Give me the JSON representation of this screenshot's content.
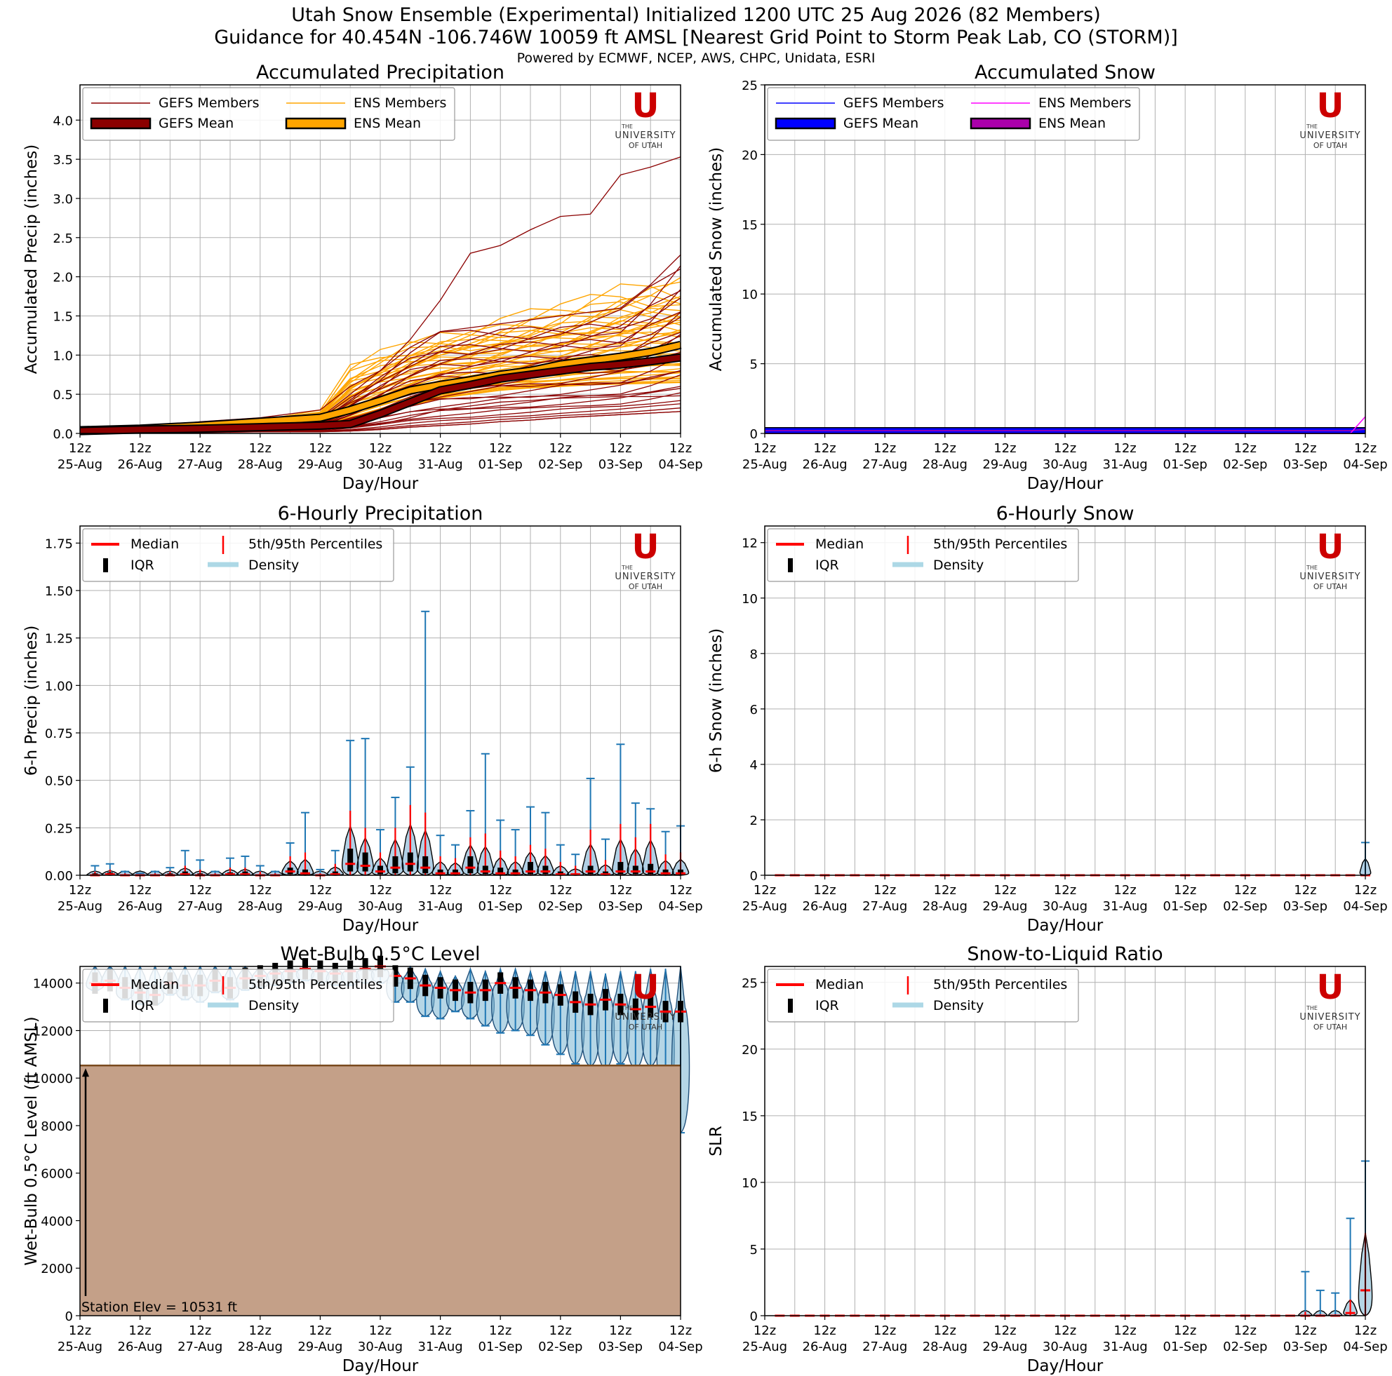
{
  "header": {
    "title_line1": "Utah Snow Ensemble (Experimental) Initialized 1200 UTC 25 Aug 2026 (82 Members)",
    "title_line2": "Guidance for 40.454N -106.746W 10059 ft AMSL [Nearest Grid Point to Storm Peak Lab, CO (STORM)]",
    "credit": "Powered by ECMWF, NCEP, AWS, CHPC, Unidata, ESRI"
  },
  "logo": {
    "letter": "U",
    "line1": "THE",
    "line2": "UNIVERSITY",
    "line3": "OF UTAH",
    "color": "#cc0000"
  },
  "common_x": {
    "label": "Day/Hour",
    "hour_label": "12z",
    "days": [
      "25-Aug",
      "26-Aug",
      "27-Aug",
      "28-Aug",
      "29-Aug",
      "30-Aug",
      "31-Aug",
      "01-Sep",
      "02-Sep",
      "03-Sep",
      "04-Sep"
    ]
  },
  "chart_data": [
    {
      "id": "acc_precip",
      "type": "line",
      "title": "Accumulated Precipitation",
      "xlabel": "Day/Hour",
      "ylabel": "Accumulated Precip (inches)",
      "ylim": [
        0,
        4.45
      ],
      "yticks": [
        "0.0",
        "0.5",
        "1.0",
        "1.5",
        "2.0",
        "2.5",
        "3.0",
        "3.5",
        "4.0"
      ],
      "legend": {
        "position": "top-left",
        "entries": [
          "GEFS Members",
          "ENS Members",
          "GEFS Mean",
          "ENS Mean"
        ]
      },
      "colors": {
        "gefs_member": "#8b0000",
        "ens_member": "#ffa500",
        "gefs_mean": "#8b0000",
        "ens_mean": "#ffa500"
      },
      "series": [
        {
          "name": "GEFS Mean",
          "x": [
            0,
            1,
            2,
            3,
            4,
            4.5,
            5,
            5.5,
            6,
            6.5,
            7,
            7.5,
            8,
            8.5,
            9,
            9.5,
            10
          ],
          "values": [
            0.03,
            0.05,
            0.06,
            0.08,
            0.1,
            0.12,
            0.25,
            0.4,
            0.55,
            0.62,
            0.7,
            0.75,
            0.8,
            0.85,
            0.88,
            0.92,
            0.97
          ]
        },
        {
          "name": "ENS Mean",
          "x": [
            0,
            1,
            2,
            3,
            4,
            4.5,
            5,
            5.5,
            6,
            6.5,
            7,
            7.5,
            8,
            8.5,
            9,
            9.5,
            10
          ],
          "values": [
            0.04,
            0.06,
            0.1,
            0.15,
            0.2,
            0.3,
            0.42,
            0.55,
            0.62,
            0.68,
            0.75,
            0.8,
            0.88,
            0.93,
            0.98,
            1.04,
            1.13
          ]
        },
        {
          "name": "GEFS Member (max)",
          "x": [
            0,
            1,
            2,
            3,
            4,
            4.5,
            5,
            5.5,
            6,
            6.5,
            7,
            7.5,
            8,
            8.5,
            9,
            9.5,
            10
          ],
          "values": [
            0.05,
            0.07,
            0.15,
            0.2,
            0.3,
            0.6,
            0.8,
            1.2,
            1.7,
            2.3,
            2.4,
            2.6,
            2.77,
            2.8,
            3.3,
            3.4,
            3.53
          ]
        },
        {
          "name": "GEFS Member (high)",
          "x": [
            0,
            1,
            2,
            3,
            4,
            4.5,
            5,
            5.5,
            6,
            6.5,
            7,
            7.5,
            8,
            8.5,
            9,
            9.5,
            10
          ],
          "values": [
            0.04,
            0.06,
            0.1,
            0.12,
            0.2,
            0.5,
            0.8,
            1.1,
            1.3,
            1.35,
            1.4,
            1.45,
            1.5,
            1.55,
            1.6,
            1.9,
            2.28
          ]
        },
        {
          "name": "ENS Member (high)",
          "x": [
            0,
            1,
            2,
            3,
            4,
            4.5,
            5,
            5.5,
            6,
            6.5,
            7,
            7.5,
            8,
            8.5,
            9,
            9.5,
            10
          ],
          "values": [
            0.05,
            0.08,
            0.12,
            0.18,
            0.3,
            0.9,
            1.1,
            1.25,
            1.35,
            1.4,
            1.5,
            1.6,
            1.7,
            1.85,
            2.0,
            2.05,
            2.08
          ]
        },
        {
          "name": "ENS Member (mid)",
          "x": [
            0,
            1,
            2,
            3,
            4,
            4.5,
            5,
            5.5,
            6,
            6.5,
            7,
            7.5,
            8,
            8.5,
            9,
            9.5,
            10
          ],
          "values": [
            0.03,
            0.05,
            0.08,
            0.12,
            0.2,
            0.4,
            0.7,
            0.9,
            1.0,
            1.1,
            1.15,
            1.2,
            1.25,
            1.28,
            1.3,
            1.35,
            1.42
          ]
        },
        {
          "name": "GEFS Member (low)",
          "x": [
            0,
            1,
            2,
            3,
            4,
            4.5,
            5,
            5.5,
            6,
            6.5,
            7,
            7.5,
            8,
            8.5,
            9,
            9.5,
            10
          ],
          "values": [
            0.02,
            0.03,
            0.04,
            0.05,
            0.06,
            0.08,
            0.12,
            0.2,
            0.3,
            0.35,
            0.4,
            0.42,
            0.45,
            0.46,
            0.47,
            0.47,
            0.48
          ]
        },
        {
          "name": "ENS Member (low)",
          "x": [
            0,
            1,
            2,
            3,
            4,
            4.5,
            5,
            5.5,
            6,
            6.5,
            7,
            7.5,
            8,
            8.5,
            9,
            9.5,
            10
          ],
          "values": [
            0.02,
            0.04,
            0.06,
            0.08,
            0.1,
            0.15,
            0.25,
            0.35,
            0.45,
            0.5,
            0.55,
            0.58,
            0.6,
            0.62,
            0.63,
            0.64,
            0.65
          ]
        },
        {
          "name": "GEFS Member (min)",
          "x": [
            0,
            1,
            2,
            3,
            4,
            4.5,
            5,
            5.5,
            6,
            6.5,
            7,
            7.5,
            8,
            8.5,
            9,
            9.5,
            10
          ],
          "values": [
            0.0,
            0.01,
            0.01,
            0.02,
            0.02,
            0.03,
            0.05,
            0.08,
            0.1,
            0.12,
            0.15,
            0.17,
            0.2,
            0.22,
            0.24,
            0.26,
            0.28
          ]
        }
      ]
    },
    {
      "id": "acc_snow",
      "type": "line",
      "title": "Accumulated Snow",
      "xlabel": "Day/Hour",
      "ylabel": "Accumulated Snow (inches)",
      "ylim": [
        0,
        25
      ],
      "yticks": [
        "0",
        "5",
        "10",
        "15",
        "20",
        "25"
      ],
      "legend": {
        "position": "top-left",
        "entries": [
          "GEFS Members",
          "ENS Members",
          "GEFS Mean",
          "ENS Mean"
        ]
      },
      "colors": {
        "gefs_member": "#0000ff",
        "ens_member": "#ff00ff",
        "gefs_mean": "#0000ff",
        "ens_mean": "#aa00aa"
      },
      "series": [
        {
          "name": "GEFS Mean",
          "x": [
            0,
            10
          ],
          "values": [
            0.2,
            0.2
          ]
        },
        {
          "name": "ENS Mean",
          "x": [
            0,
            9.75,
            10
          ],
          "values": [
            0.2,
            0.2,
            0.3
          ]
        },
        {
          "name": "ENS Member (max)",
          "x": [
            0,
            9.75,
            10
          ],
          "values": [
            0,
            0,
            1.2
          ]
        }
      ]
    },
    {
      "id": "six_hr_precip",
      "type": "violin",
      "title": "6-Hourly Precipitation",
      "xlabel": "Day/Hour",
      "ylabel": "6-h Precip (inches)",
      "ylim": [
        0,
        1.84
      ],
      "yticks": [
        "0.00",
        "0.25",
        "0.50",
        "0.75",
        "1.00",
        "1.25",
        "1.50",
        "1.75"
      ],
      "legend": {
        "position": "top-left",
        "entries": [
          "Median",
          "5th/95th Percentiles",
          "IQR",
          "Density"
        ]
      },
      "x": [
        0.25,
        0.5,
        0.75,
        1.0,
        1.25,
        1.5,
        1.75,
        2.0,
        2.25,
        2.5,
        2.75,
        3.0,
        3.25,
        3.5,
        3.75,
        4.0,
        4.25,
        4.5,
        4.75,
        5.0,
        5.25,
        5.5,
        5.75,
        6.0,
        6.25,
        6.5,
        6.75,
        7.0,
        7.25,
        7.5,
        7.75,
        8.0,
        8.25,
        8.5,
        8.75,
        9.0,
        9.25,
        9.5,
        9.75,
        10.0
      ],
      "max": [
        0.05,
        0.06,
        0.02,
        0.01,
        0.02,
        0.04,
        0.13,
        0.08,
        0.02,
        0.09,
        0.1,
        0.05,
        0.02,
        0.17,
        0.33,
        0.03,
        0.13,
        0.71,
        0.72,
        0.24,
        0.41,
        0.57,
        1.39,
        0.21,
        0.16,
        0.34,
        0.64,
        0.29,
        0.24,
        0.36,
        0.33,
        0.16,
        0.11,
        0.51,
        0.19,
        0.69,
        0.38,
        0.35,
        0.23,
        0.26
      ],
      "p95": [
        0.02,
        0.03,
        0.01,
        0.0,
        0.01,
        0.02,
        0.05,
        0.03,
        0.01,
        0.04,
        0.04,
        0.02,
        0.01,
        0.1,
        0.12,
        0.01,
        0.06,
        0.34,
        0.25,
        0.12,
        0.25,
        0.37,
        0.33,
        0.1,
        0.09,
        0.2,
        0.22,
        0.13,
        0.1,
        0.16,
        0.14,
        0.07,
        0.05,
        0.24,
        0.08,
        0.27,
        0.2,
        0.27,
        0.11,
        0.12
      ],
      "q3": [
        0.01,
        0.015,
        0.0,
        0.0,
        0.005,
        0.01,
        0.02,
        0.01,
        0.0,
        0.015,
        0.02,
        0.005,
        0.005,
        0.04,
        0.03,
        0.0,
        0.02,
        0.14,
        0.12,
        0.05,
        0.1,
        0.12,
        0.1,
        0.03,
        0.03,
        0.1,
        0.05,
        0.04,
        0.03,
        0.07,
        0.05,
        0.02,
        0.01,
        0.05,
        0.02,
        0.07,
        0.05,
        0.06,
        0.03,
        0.03
      ],
      "median": [
        0.0,
        0.005,
        0.0,
        0.0,
        0.0,
        0.0,
        0.005,
        0.0,
        0.0,
        0.005,
        0.005,
        0.0,
        0.0,
        0.02,
        0.01,
        0.0,
        0.005,
        0.06,
        0.05,
        0.02,
        0.04,
        0.06,
        0.04,
        0.01,
        0.01,
        0.04,
        0.02,
        0.01,
        0.01,
        0.02,
        0.02,
        0.005,
        0.005,
        0.02,
        0.005,
        0.02,
        0.02,
        0.02,
        0.01,
        0.01
      ],
      "q1": [
        0,
        0,
        0,
        0,
        0,
        0,
        0,
        0,
        0,
        0,
        0,
        0,
        0,
        0.005,
        0,
        0,
        0,
        0.02,
        0.02,
        0.005,
        0.01,
        0.02,
        0.01,
        0,
        0,
        0.01,
        0.005,
        0,
        0,
        0.005,
        0.005,
        0,
        0,
        0.005,
        0,
        0.005,
        0.005,
        0.005,
        0,
        0
      ]
    },
    {
      "id": "six_hr_snow",
      "type": "violin",
      "title": "6-Hourly Snow",
      "xlabel": "Day/Hour",
      "ylabel": "6-h Snow (inches)",
      "ylim": [
        0,
        12.6
      ],
      "yticks": [
        "0",
        "2",
        "4",
        "6",
        "8",
        "10",
        "12"
      ],
      "legend": {
        "position": "top-left",
        "entries": [
          "Median",
          "5th/95th Percentiles",
          "IQR",
          "Density"
        ]
      },
      "x": [
        10.0
      ],
      "max": [
        1.18
      ],
      "median": [
        0.0
      ]
    },
    {
      "id": "wet_bulb",
      "type": "violin",
      "title": "Wet-Bulb 0.5°C Level",
      "xlabel": "Day/Hour",
      "ylabel": "Wet-Bulb 0.5°C Level (ft AMSL)",
      "ylim": [
        0,
        14700
      ],
      "yticks": [
        "0",
        "2000",
        "4000",
        "6000",
        "8000",
        "10000",
        "12000",
        "14000"
      ],
      "station_elev": 10531,
      "station_label": "Station Elev = 10531 ft",
      "terrain_color": "#c4a088",
      "legend": {
        "position": "top-left",
        "entries": [
          "Median",
          "5th/95th Percentiles",
          "IQR",
          "Density"
        ]
      },
      "x": [
        0.25,
        0.5,
        0.75,
        1.0,
        1.25,
        1.5,
        1.75,
        2.0,
        2.25,
        2.5,
        2.75,
        3.0,
        3.25,
        3.5,
        3.75,
        4.0,
        4.25,
        4.5,
        4.75,
        5.0,
        5.25,
        5.5,
        5.75,
        6.0,
        6.25,
        6.5,
        6.75,
        7.0,
        7.25,
        7.5,
        7.75,
        8.0,
        8.25,
        8.5,
        8.75,
        9.0,
        9.25,
        9.5,
        9.75,
        10.0
      ],
      "median": [
        14000,
        14100,
        13800,
        13600,
        13500,
        14000,
        13900,
        13900,
        14100,
        13800,
        14200,
        14300,
        14400,
        14500,
        14600,
        14500,
        14400,
        14500,
        14600,
        14700,
        14300,
        14200,
        13900,
        13800,
        13700,
        13600,
        13700,
        14000,
        13800,
        13700,
        13600,
        13500,
        13200,
        13100,
        13300,
        13100,
        12900,
        13000,
        12800,
        12800
      ],
      "min": [
        13700,
        13900,
        13300,
        13100,
        13100,
        13500,
        13300,
        13200,
        13600,
        13300,
        13700,
        13800,
        13900,
        14000,
        14100,
        14000,
        13900,
        13900,
        14000,
        14000,
        13200,
        13200,
        12600,
        12500,
        12800,
        12500,
        12200,
        11900,
        12000,
        11800,
        11400,
        11000,
        10600,
        10500,
        10400,
        10600,
        10400,
        10500,
        9100,
        7700
      ],
      "max": [
        14700,
        14700,
        14700,
        14700,
        14700,
        14700,
        14700,
        14700,
        14700,
        14700,
        14700,
        14700,
        14700,
        14700,
        14700,
        14700,
        14700,
        14700,
        14700,
        14700,
        14700,
        14700,
        14600,
        14500,
        14300,
        14600,
        14500,
        14600,
        14600,
        14500,
        14500,
        14500,
        14500,
        14500,
        14400,
        14500,
        14500,
        14600,
        14600,
        14700
      ]
    },
    {
      "id": "slr",
      "type": "violin",
      "title": "Snow-to-Liquid Ratio",
      "xlabel": "Day/Hour",
      "ylabel": "SLR",
      "ylim": [
        0,
        26.2
      ],
      "yticks": [
        "0",
        "5",
        "10",
        "15",
        "20",
        "25"
      ],
      "legend": {
        "position": "top-left",
        "entries": [
          "Median",
          "5th/95th Percentiles",
          "IQR",
          "Density"
        ]
      },
      "x": [
        9.0,
        9.25,
        9.5,
        9.75,
        10.0
      ],
      "max": [
        3.3,
        1.9,
        1.7,
        7.3,
        11.6
      ],
      "p95": [
        0.3,
        0.1,
        0.1,
        1.2,
        6.2
      ],
      "median": [
        0.0,
        0.0,
        0.0,
        0.2,
        1.9
      ]
    }
  ]
}
